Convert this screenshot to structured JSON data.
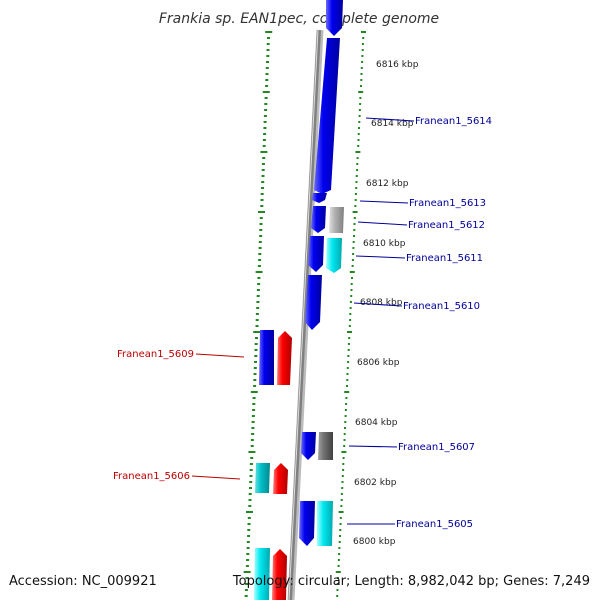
{
  "title": "Frankia sp. EAN1pec, complete genome",
  "accession_text": "Accession: NC_009921",
  "topology_text": "Topology: circular; Length: 8,982,042 bp; Genes: 7,249",
  "colors": {
    "forward_gene": "#0000ee",
    "reverse_gene": "#ee0000",
    "cyan_gene": "#00e0e8",
    "gray_gene": "#a0a0a0",
    "tick_marks": "#228822",
    "backbone": "#888888",
    "label_forward": "#000099",
    "label_reverse": "#bb0000"
  },
  "kbp_labels": [
    "6816 kbp",
    "6814 kbp",
    "6812 kbp",
    "6810 kbp",
    "6808 kbp",
    "6806 kbp",
    "6804 kbp",
    "6802 kbp",
    "6800 kbp"
  ],
  "gene_labels_right": [
    "Franean1_5614",
    "Franean1_5613",
    "Franean1_5612",
    "Franean1_5611",
    "Franean1_5610",
    "Franean1_5607",
    "Franean1_5605"
  ],
  "gene_labels_left": [
    "Franean1_5609",
    "Franean1_5606"
  ]
}
